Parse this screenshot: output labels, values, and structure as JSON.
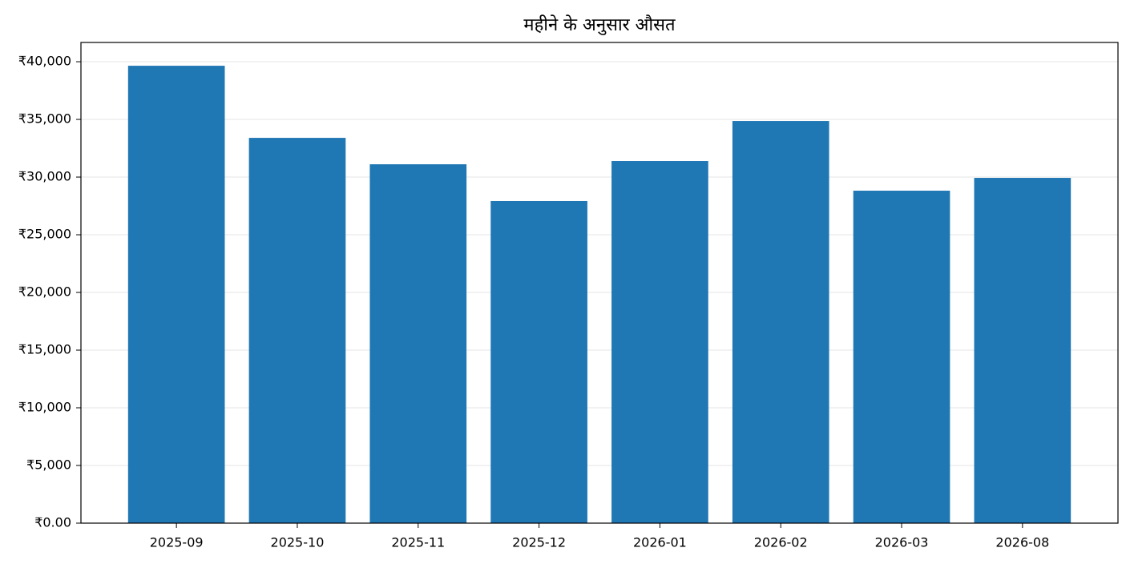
{
  "chart_data": {
    "type": "bar",
    "title": "महीने के अनुसार औसत",
    "categories": [
      "2025-09",
      "2025-10",
      "2025-11",
      "2025-12",
      "2026-01",
      "2026-02",
      "2026-03",
      "2026-08"
    ],
    "values": [
      39650,
      33400,
      31110,
      27920,
      31390,
      34860,
      28820,
      29930
    ],
    "color": "#1f77b4",
    "ylim": [
      0,
      41670
    ],
    "yticks": [
      {
        "value": 0,
        "label": "₹0.00"
      },
      {
        "value": 5000,
        "label": "₹5,000"
      },
      {
        "value": 10000,
        "label": "₹10,000"
      },
      {
        "value": 15000,
        "label": "₹15,000"
      },
      {
        "value": 20000,
        "label": "₹20,000"
      },
      {
        "value": 25000,
        "label": "₹25,000"
      },
      {
        "value": 30000,
        "label": "₹30,000"
      },
      {
        "value": 35000,
        "label": "₹35,000"
      },
      {
        "value": 40000,
        "label": "₹40,000"
      }
    ],
    "grid": true
  }
}
